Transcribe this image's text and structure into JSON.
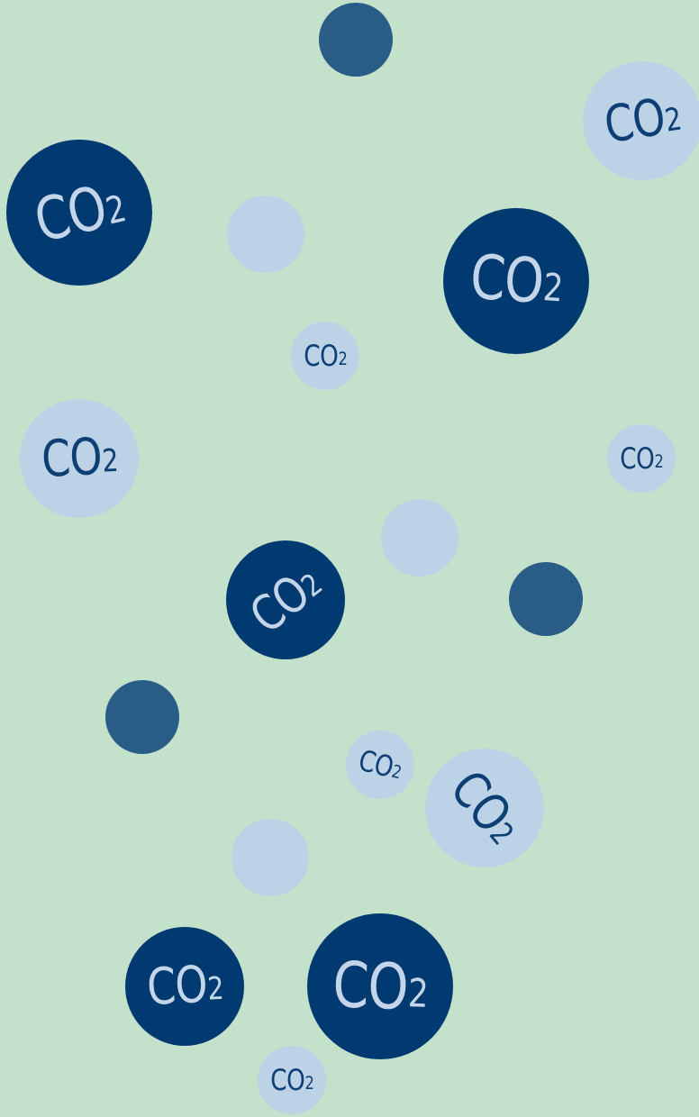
{
  "molecules": {
    "label": "CO",
    "subscript": "2"
  },
  "colors": {
    "background": "#c4e1cb",
    "dark_molecule": "#003a70",
    "medium_dot": "#295c86",
    "light_molecule": "#bcd2e6",
    "dark_text": "#c4d5e9",
    "light_text": "#0d3f74"
  }
}
